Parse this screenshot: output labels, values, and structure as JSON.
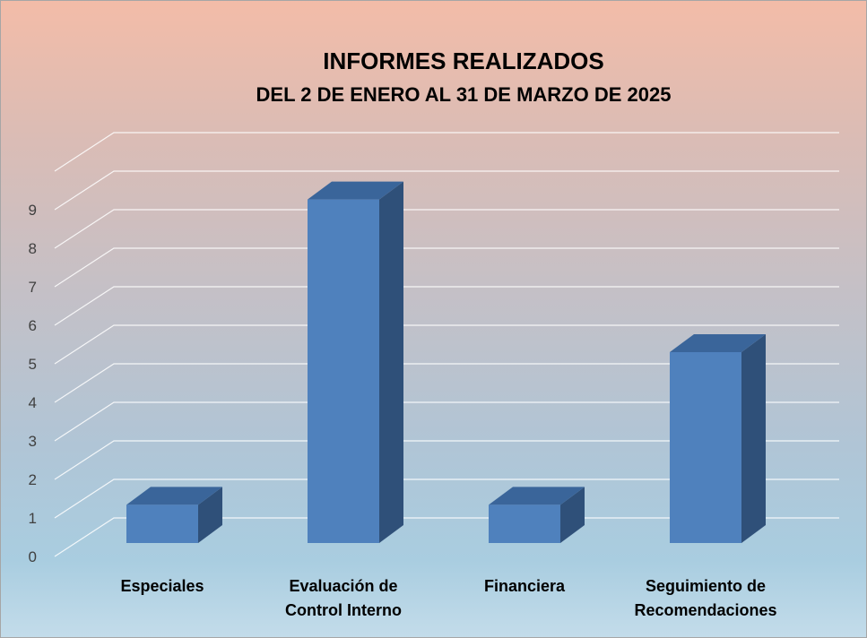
{
  "chart_data": {
    "type": "bar",
    "title": "INFORMES REALIZADOS",
    "subtitle": "DEL 2 DE ENERO AL 31 DE MARZO DE 2025",
    "xlabel": "",
    "ylabel": "",
    "categories": [
      "Especiales",
      "Evaluación de Control Interno",
      "Financiera",
      "Seguimiento de Recomendaciones"
    ],
    "category_lines": [
      [
        "Especiales"
      ],
      [
        "Evaluación de",
        "Control Interno"
      ],
      [
        "Financiera"
      ],
      [
        "Seguimiento de",
        "Recomendaciones"
      ]
    ],
    "values": [
      1,
      9,
      1,
      5
    ],
    "ylim": [
      0,
      10
    ],
    "yticks": [
      0,
      1,
      2,
      3,
      4,
      5,
      6,
      7,
      8,
      9
    ],
    "grid": true,
    "legend": "none",
    "style": "3d-column",
    "colors": {
      "bar_front": "#4f81bd",
      "bar_top": "#3a659a",
      "bar_side": "#2f5079",
      "grid": "#ffffff"
    }
  }
}
